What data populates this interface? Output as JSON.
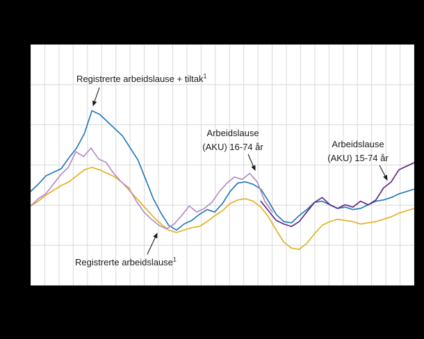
{
  "chart_data": {
    "type": "line",
    "note": "Axis tick labels are not visible in the screenshot; x and y values are relative positions (0-100) within the plot area.",
    "xlabel": "",
    "ylabel": "",
    "x_range": [
      0,
      100
    ],
    "y_range": [
      0,
      100
    ],
    "grid": {
      "vertical_intervals": 27,
      "horizontal_intervals": 6,
      "color": "#d8d8d8"
    },
    "background": {
      "page": "#000000",
      "plot": "#ffffff"
    },
    "series": [
      {
        "name": "Registrerte arbeidslause",
        "color": "#e2b221",
        "x_start": 0,
        "x_end": 100,
        "values": [
          33,
          35,
          37.5,
          39.5,
          41.5,
          43,
          45.5,
          48,
          49,
          48,
          46.5,
          45,
          42.5,
          39,
          35.5,
          32,
          28.5,
          25.5,
          23,
          22,
          23,
          24,
          24.5,
          26.5,
          29,
          31,
          34,
          35.5,
          36,
          35,
          32.5,
          28.5,
          23,
          18,
          15.5,
          15,
          17.5,
          21.5,
          25,
          26.5,
          27.5,
          27,
          26.5,
          25.5,
          26,
          26.5,
          27.5,
          28.5,
          30,
          31,
          32
        ]
      },
      {
        "name": "Registrerte arbeidslause + tiltak",
        "color": "#2679b8",
        "x_start": 0,
        "x_end": 100,
        "values": [
          39,
          42,
          45.5,
          47,
          48.5,
          53,
          57,
          63,
          72.5,
          71,
          68,
          65,
          62,
          57,
          52,
          44,
          36,
          30,
          25,
          23,
          25.5,
          27,
          29.5,
          31.5,
          30.5,
          34,
          39,
          42.5,
          43,
          42,
          40,
          35,
          29.5,
          26.5,
          26,
          29,
          31.5,
          34.5,
          35,
          33.5,
          32,
          32.5,
          31.5,
          32,
          33.5,
          35,
          35.5,
          36.5,
          38,
          39,
          40
        ]
      },
      {
        "name": "Arbeidslause (AKU) 16-74 år",
        "color": "#b58cc8",
        "x_start": 0,
        "x_end": 63,
        "values": [
          33,
          36,
          38,
          42,
          46,
          49,
          55.5,
          53.5,
          57,
          52.5,
          51,
          46.5,
          43,
          40.5,
          35,
          30.5,
          27.5,
          25,
          23.5,
          25.5,
          29,
          33,
          30.5,
          32,
          34.5,
          39,
          42.5,
          45,
          44,
          46.5,
          43,
          35,
          30.5
        ]
      },
      {
        "name": "Arbeidslause (AKU) 15-74 år",
        "color": "#5f2a84",
        "x_start": 60,
        "x_end": 100,
        "values": [
          35,
          31,
          27,
          25.5,
          24.5,
          26.5,
          30.5,
          34.5,
          36.5,
          33.5,
          32,
          33.5,
          32.5,
          35,
          33.5,
          35.5,
          40.5,
          43,
          48,
          49.5,
          51
        ]
      }
    ],
    "annotations": [
      {
        "line1": "Registrerte arbeidslause + tiltak",
        "sup": "1"
      },
      {
        "line1": "Arbeidslause",
        "line2": "(AKU) 16-74 år"
      },
      {
        "line1": "Arbeidslause",
        "line2": "(AKU) 15-74 år"
      },
      {
        "line1": "Registrerte arbeidslause",
        "sup": "1"
      }
    ]
  }
}
